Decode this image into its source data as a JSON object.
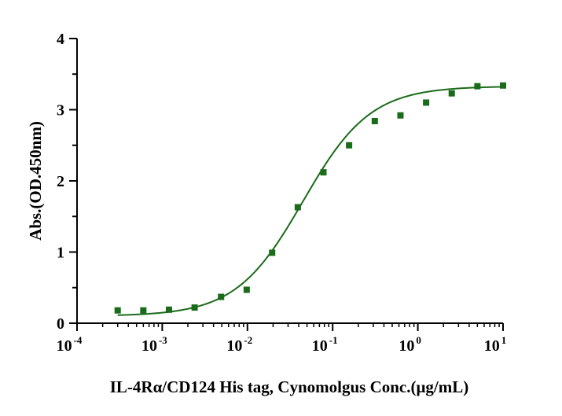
{
  "chart_data": {
    "type": "scatter",
    "title": "",
    "xlabel": "IL-4Rα/CD124 His tag, Cynomolgus  Conc.(μg/mL)",
    "ylabel": "Abs.(OD.450nm)",
    "xscale": "log",
    "xlim": [
      0.0001,
      10
    ],
    "ylim": [
      0,
      4
    ],
    "x_ticks": [
      {
        "base": "10",
        "exp": "-4"
      },
      {
        "base": "10",
        "exp": "-3"
      },
      {
        "base": "10",
        "exp": "-2"
      },
      {
        "base": "10",
        "exp": "-1"
      },
      {
        "base": "10",
        "exp": "0"
      },
      {
        "base": "10",
        "exp": "1"
      }
    ],
    "y_ticks": [
      "0",
      "1",
      "2",
      "3",
      "4"
    ],
    "grid": false,
    "legend": "none",
    "color": "#1a6b1a",
    "series": [
      {
        "x": [
          0.0003,
          0.0006,
          0.0012,
          0.0024,
          0.0049,
          0.0098,
          0.0195,
          0.039,
          0.078,
          0.156,
          0.3125,
          0.625,
          1.25,
          2.5,
          5,
          10
        ],
        "y": [
          0.18,
          0.18,
          0.19,
          0.22,
          0.37,
          0.47,
          0.99,
          1.63,
          2.12,
          2.5,
          2.84,
          2.92,
          3.1,
          3.23,
          3.33,
          3.34
        ]
      }
    ],
    "fit": {
      "model": "4PL",
      "bottom": 0.1,
      "top": 3.33,
      "ec50": 0.045,
      "hill": 1.1
    }
  }
}
